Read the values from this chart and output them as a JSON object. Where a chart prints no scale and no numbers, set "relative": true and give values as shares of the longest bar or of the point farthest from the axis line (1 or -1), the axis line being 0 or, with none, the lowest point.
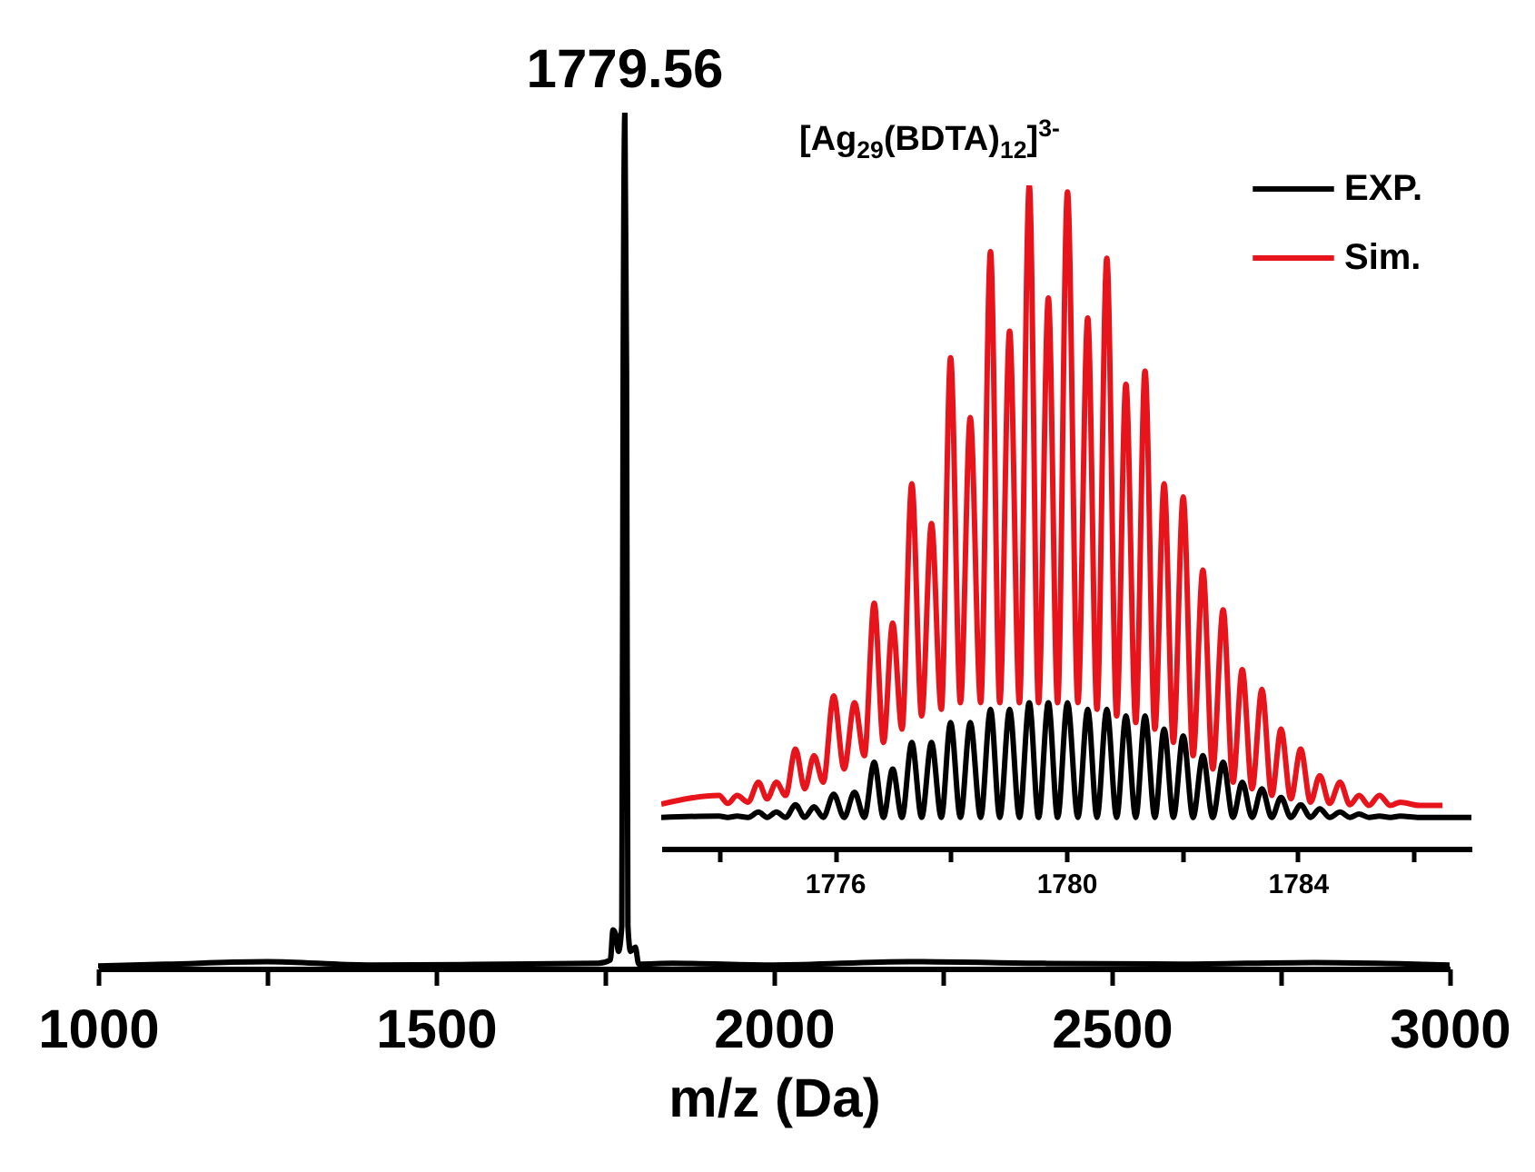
{
  "chart_data": [
    {
      "type": "line",
      "xlabel": "m/z (Da)",
      "relative": true,
      "color": "#000000",
      "xlim": [
        1000,
        3000
      ],
      "xticks": [
        1000,
        {
          "value": 1250,
          "label": null
        },
        1500,
        {
          "value": 1750,
          "label": null
        },
        2000,
        {
          "value": 2250,
          "label": null
        },
        2500,
        {
          "value": 2750,
          "label": null
        },
        3000
      ],
      "x": [
        1000,
        1100,
        1250,
        1400,
        1600,
        1740,
        1758,
        1762,
        1766,
        1770,
        1775,
        1777,
        1779.56,
        1782,
        1784,
        1788,
        1795,
        1800,
        1850,
        2000,
        2200,
        2400,
        2600,
        2800,
        3000
      ],
      "values": [
        0.003,
        0.005,
        0.008,
        0.004,
        0.005,
        0.006,
        0.01,
        0.045,
        0.04,
        0.02,
        0.05,
        0.7,
        1,
        0.7,
        0.05,
        0.02,
        0.025,
        0.005,
        0.006,
        0.004,
        0.008,
        0.006,
        0.005,
        0.007,
        0.004
      ],
      "annotations": [
        {
          "text": "1779.56",
          "x": 1779.56,
          "y": 1
        }
      ]
    },
    {
      "type": "line",
      "title": "[Ag$_{29}$(BDTA)$_{12}$]$^{3-}$",
      "relative": true,
      "legend": "top right",
      "xlim": [
        1773,
        1787
      ],
      "xticks": [
        {
          "value": 1774,
          "label": null
        },
        1776,
        {
          "value": 1778,
          "label": null
        },
        1780,
        {
          "value": 1782,
          "label": null
        },
        1784,
        {
          "value": 1786,
          "label": null
        }
      ],
      "series": [
        {
          "name": "EXP.",
          "color": "#000000",
          "x": [
            1773,
            1774.0,
            1774.15,
            1774.31,
            1774.5,
            1774.68,
            1774.83,
            1774.99,
            1775.15,
            1775.32,
            1775.48,
            1775.64,
            1775.8,
            1775.98,
            1776.16,
            1776.34,
            1776.51,
            1776.68,
            1776.84,
            1777.0,
            1777.16,
            1777.33,
            1777.5,
            1777.67,
            1777.84,
            1778.0,
            1778.17,
            1778.34,
            1778.52,
            1778.69,
            1778.85,
            1779.02,
            1779.19,
            1779.36,
            1779.52,
            1779.69,
            1779.85,
            1780.02,
            1780.2,
            1780.37,
            1780.53,
            1780.7,
            1780.87,
            1781.03,
            1781.2,
            1781.36,
            1781.53,
            1781.69,
            1781.85,
            1782.02,
            1782.19,
            1782.36,
            1782.53,
            1782.71,
            1782.88,
            1783.04,
            1783.21,
            1783.38,
            1783.55,
            1783.71,
            1783.88,
            1784.05,
            1784.22,
            1784.38,
            1784.55,
            1784.73,
            1784.9,
            1785.06,
            1785.23,
            1785.41,
            1785.6,
            1785.77,
            1786.1,
            1787
          ],
          "values": [
            0.047,
            0.049,
            0.047,
            0.049,
            0.047,
            0.055,
            0.047,
            0.055,
            0.047,
            0.066,
            0.047,
            0.063,
            0.047,
            0.082,
            0.047,
            0.085,
            0.047,
            0.13,
            0.047,
            0.12,
            0.047,
            0.16,
            0.047,
            0.16,
            0.047,
            0.19,
            0.047,
            0.19,
            0.047,
            0.21,
            0.047,
            0.21,
            0.047,
            0.22,
            0.047,
            0.22,
            0.047,
            0.22,
            0.047,
            0.21,
            0.047,
            0.21,
            0.047,
            0.2,
            0.047,
            0.2,
            0.047,
            0.18,
            0.047,
            0.17,
            0.047,
            0.14,
            0.047,
            0.13,
            0.047,
            0.1,
            0.047,
            0.09,
            0.047,
            0.077,
            0.047,
            0.066,
            0.047,
            0.06,
            0.047,
            0.055,
            0.047,
            0.052,
            0.047,
            0.049,
            0.047,
            0.049,
            0.047,
            0.047
          ]
        },
        {
          "name": "Sim.",
          "color": "#e8141b",
          "x": [
            1773,
            1774.0,
            1774.15,
            1774.31,
            1774.5,
            1774.68,
            1774.83,
            1774.99,
            1775.15,
            1775.32,
            1775.48,
            1775.64,
            1775.8,
            1775.98,
            1776.16,
            1776.34,
            1776.51,
            1776.68,
            1776.84,
            1777.0,
            1777.16,
            1777.33,
            1777.5,
            1777.67,
            1777.84,
            1778.0,
            1778.17,
            1778.34,
            1778.52,
            1778.69,
            1778.85,
            1779.02,
            1779.19,
            1779.36,
            1779.52,
            1779.69,
            1779.85,
            1780.02,
            1780.2,
            1780.37,
            1780.53,
            1780.7,
            1780.87,
            1781.03,
            1781.2,
            1781.36,
            1781.53,
            1781.69,
            1781.85,
            1782.02,
            1782.19,
            1782.36,
            1782.53,
            1782.71,
            1782.88,
            1783.04,
            1783.21,
            1783.38,
            1783.55,
            1783.71,
            1783.88,
            1784.05,
            1784.22,
            1784.38,
            1784.55,
            1784.73,
            1784.9,
            1785.06,
            1785.23,
            1785.41,
            1785.6,
            1785.77,
            1786.1,
            1786.5
          ],
          "values": [
            0.067,
            0.08,
            0.068,
            0.08,
            0.07,
            0.1,
            0.075,
            0.1,
            0.08,
            0.15,
            0.09,
            0.14,
            0.1,
            0.23,
            0.12,
            0.22,
            0.14,
            0.37,
            0.16,
            0.34,
            0.18,
            0.55,
            0.2,
            0.49,
            0.21,
            0.74,
            0.22,
            0.65,
            0.22,
            0.9,
            0.22,
            0.78,
            0.22,
            1,
            0.22,
            0.83,
            0.22,
            0.99,
            0.22,
            0.8,
            0.21,
            0.89,
            0.2,
            0.7,
            0.19,
            0.72,
            0.18,
            0.55,
            0.16,
            0.53,
            0.14,
            0.42,
            0.12,
            0.36,
            0.1,
            0.27,
            0.09,
            0.24,
            0.08,
            0.18,
            0.075,
            0.15,
            0.07,
            0.11,
            0.068,
            0.1,
            0.066,
            0.08,
            0.065,
            0.08,
            0.065,
            0.07,
            0.065,
            0.065
          ]
        }
      ]
    }
  ]
}
